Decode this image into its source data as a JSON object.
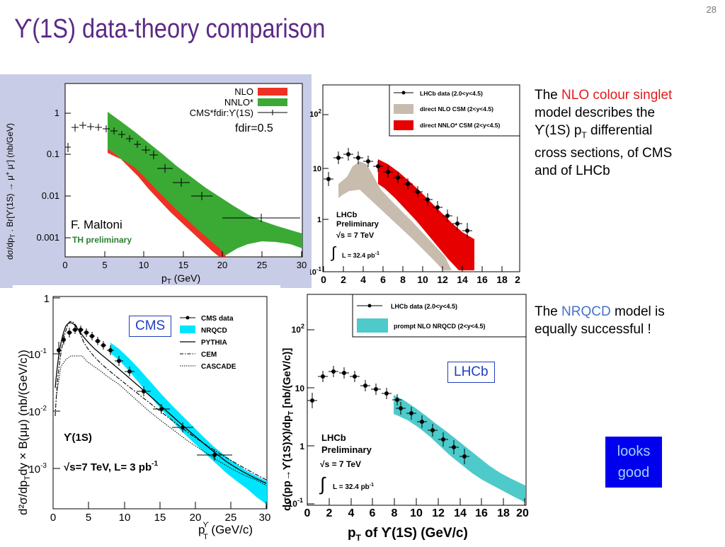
{
  "title": "ϒ(1S) data-theory comparison",
  "page_number": "28",
  "text_right1": {
    "pre": "The ",
    "highlight": "NLO colour singlet",
    "line2": "model describes the",
    "line3": "ϒ(1S) p",
    "line3_sub": "T",
    "line3_end": " differential",
    "line4": "cross sections, of CMS",
    "line5": "and of LHCb"
  },
  "text_right2": {
    "pre": "The ",
    "highlight": "NRQCD",
    "post": " model is",
    "line2": "equally successful !"
  },
  "looks_good": {
    "line1": "looks",
    "line2": "good"
  },
  "plot_tl": {
    "yticks": [
      "1",
      "0.1",
      "0.01",
      "0.001"
    ],
    "xticks": [
      "0",
      "5",
      "10",
      "15",
      "20",
      "25",
      "30"
    ],
    "xlabel": "p",
    "xlabel_sub": "T",
    "xlabel_unit": " (GeV)",
    "ylabel": "dσ/dp",
    "ylabel_sub": "T",
    "ylabel_rest": " . Br[ϒ(1S) → μ",
    "ylabel_sup": "+",
    "ylabel_mu": " μ",
    "ylabel_sup2": "-",
    "ylabel_unit": "] (nb/GeV)",
    "legend": [
      "NLO",
      "NNLO*",
      "CMS*fdir:ϒ(1S)"
    ],
    "fdir": "fdir=0.5",
    "author": "F. Maltoni",
    "prelim": "TH preliminary",
    "colors": {
      "nlo": "#ee3124",
      "nnlo": "#3aaa35"
    }
  },
  "plot_tr": {
    "yticks": [
      "10",
      "1",
      "10"
    ],
    "ytick_top": "10",
    "ytick_top_sup": "2",
    "ytick_bot_sup": "-1",
    "xticks": [
      "0",
      "2",
      "4",
      "6",
      "8",
      "10",
      "12",
      "14",
      "16",
      "18",
      "2"
    ],
    "legend": [
      "LHCb data (2.0<y<4.5)",
      "direct NLO CSM (2<y<4.5)",
      "direct NNLO* CSM (2<y<4.5)"
    ],
    "lhcb": "LHCb",
    "prelim": "Preliminary",
    "sqrt": "√s = 7 TeV",
    "lumi": "L = 32.4 pb",
    "lumi_sup": "-1",
    "colors": {
      "nlo": "#c8bcae",
      "nnlo": "#e60000"
    }
  },
  "plot_bl": {
    "yticks": [
      "1",
      "10",
      "10",
      "10"
    ],
    "ytick_sups": [
      "",
      "-1",
      "-2",
      "-3"
    ],
    "xticks": [
      "0",
      "5",
      "10",
      "15",
      "20",
      "25",
      "30"
    ],
    "xlabel": "p",
    "xlabel_sup": "ϒ",
    "xlabel_sub": "T",
    "xlabel_unit": " (GeV/c)",
    "ylabel": "d²σ/dp",
    "ylabel_sub": "T",
    "ylabel_rest": "dy × B(μμ)  (nb/(GeV/c))",
    "legend": [
      "CMS data",
      "NRQCD",
      "PYTHIA",
      "CEM",
      "CASCADE"
    ],
    "state": "ϒ(1S)",
    "sqrt": "√s=7 TeV, L= 3 pb",
    "sqrt_sup": "-1",
    "label_box": "CMS",
    "colors": {
      "nrqcd": "#00e5ff"
    }
  },
  "plot_br": {
    "ytick_top": "10",
    "ytick_top_sup": "2",
    "yticks": [
      "10",
      "1"
    ],
    "ytick_bot": "10",
    "ytick_bot_sup": "-1",
    "xticks": [
      "0",
      "2",
      "4",
      "6",
      "8",
      "10",
      "12",
      "14",
      "16",
      "18",
      "20"
    ],
    "xlabel": "p",
    "xlabel_sub": "T",
    "xlabel_rest": " of ϒ(1S) (GeV/c)",
    "ylabel": "dσ(pp→ϒ(1S)X)/dp",
    "ylabel_sub": "T",
    "ylabel_unit": " [nb/(GeV/c)]",
    "legend": [
      "LHCb data (2.0<y<4.5)",
      "prompt NLO NRQCD (2<y<4.5)"
    ],
    "lhcb": "LHCb",
    "prelim": "Preliminary",
    "sqrt": "√s = 7 TeV",
    "lumi": "L = 32.4 pb",
    "lumi_sup": "-1",
    "label_box": "LHCb",
    "colors": {
      "nrqcd": "#4ecacb"
    }
  }
}
